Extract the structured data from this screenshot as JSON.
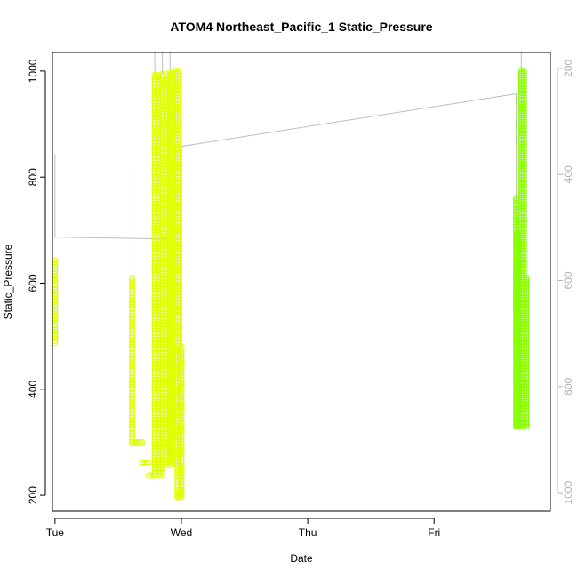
{
  "chart_data": {
    "type": "scatter",
    "title": "ATOM4 Northeast_Pacific_1 Static_Pressure",
    "xlabel": "Date",
    "ylabel": "Static_Pressure",
    "x_ticks": [
      "Tue",
      "Wed",
      "Thu",
      "Fri"
    ],
    "xlim": [
      -0.02,
      3.92
    ],
    "ylim": [
      170,
      1035
    ],
    "y_ticks": [
      200,
      400,
      600,
      800,
      1000
    ],
    "y2_ticks": [
      200,
      400,
      600,
      800,
      1000
    ],
    "y2_reversed": true,
    "grid": false,
    "legend": "none",
    "colors": {
      "yellow": "#ddff00",
      "yellow_green": "#ccff00",
      "green": "#88ff00",
      "track_line": "#bebebe",
      "right_axis": "#b3b3b3"
    },
    "track_line": [
      [
        0.0,
        843
      ],
      [
        0.0,
        687
      ],
      [
        1.0,
        683
      ],
      [
        1.0,
        196
      ],
      [
        1.0,
        858
      ],
      [
        3.65,
        957
      ],
      [
        3.65,
        690
      ]
    ],
    "series": [
      {
        "color": "#ddff00",
        "segments": [
          {
            "x_start": 0.0,
            "x_end": 0.0,
            "y_start": 487,
            "y_end": 643
          }
        ]
      },
      {
        "color": "#ddff00",
        "segments": [
          {
            "x_start": 0.61,
            "x_end": 0.61,
            "y_start": 610,
            "y_end": 300
          },
          {
            "x_start": 0.61,
            "x_end": 0.69,
            "y_start": 300,
            "y_end": 300
          },
          {
            "x_start": 0.69,
            "x_end": 0.74,
            "y_start": 262,
            "y_end": 262
          },
          {
            "x_start": 0.74,
            "x_end": 0.78,
            "y_start": 237,
            "y_end": 237
          },
          {
            "x_start": 0.79,
            "x_end": 0.79,
            "y_start": 237,
            "y_end": 993
          },
          {
            "x_start": 0.82,
            "x_end": 0.82,
            "y_start": 993,
            "y_end": 237
          },
          {
            "x_start": 0.85,
            "x_end": 0.85,
            "y_start": 237,
            "y_end": 995
          },
          {
            "x_start": 0.88,
            "x_end": 0.88,
            "y_start": 995,
            "y_end": 258
          },
          {
            "x_start": 0.91,
            "x_end": 0.91,
            "y_start": 258,
            "y_end": 997
          },
          {
            "x_start": 0.93,
            "x_end": 0.93,
            "y_start": 997,
            "y_end": 260
          },
          {
            "x_start": 0.95,
            "x_end": 0.95,
            "y_start": 260,
            "y_end": 1000
          },
          {
            "x_start": 0.97,
            "x_end": 0.97,
            "y_start": 1000,
            "y_end": 197
          },
          {
            "x_start": 0.97,
            "x_end": 0.99,
            "y_start": 197,
            "y_end": 197
          },
          {
            "x_start": 1.0,
            "x_end": 1.0,
            "y_start": 197,
            "y_end": 480
          }
        ]
      },
      {
        "color": "#88ff00",
        "segments": [
          {
            "x_start": 3.65,
            "x_end": 3.65,
            "y_start": 760,
            "y_end": 330
          },
          {
            "x_start": 3.66,
            "x_end": 3.66,
            "y_start": 330,
            "y_end": 695
          },
          {
            "x_start": 3.67,
            "x_end": 3.67,
            "y_start": 695,
            "y_end": 330
          },
          {
            "x_start": 3.69,
            "x_end": 3.69,
            "y_start": 330,
            "y_end": 1000
          },
          {
            "x_start": 3.71,
            "x_end": 3.71,
            "y_start": 1000,
            "y_end": 330
          },
          {
            "x_start": 3.73,
            "x_end": 3.73,
            "y_start": 330,
            "y_end": 610
          }
        ]
      }
    ]
  }
}
